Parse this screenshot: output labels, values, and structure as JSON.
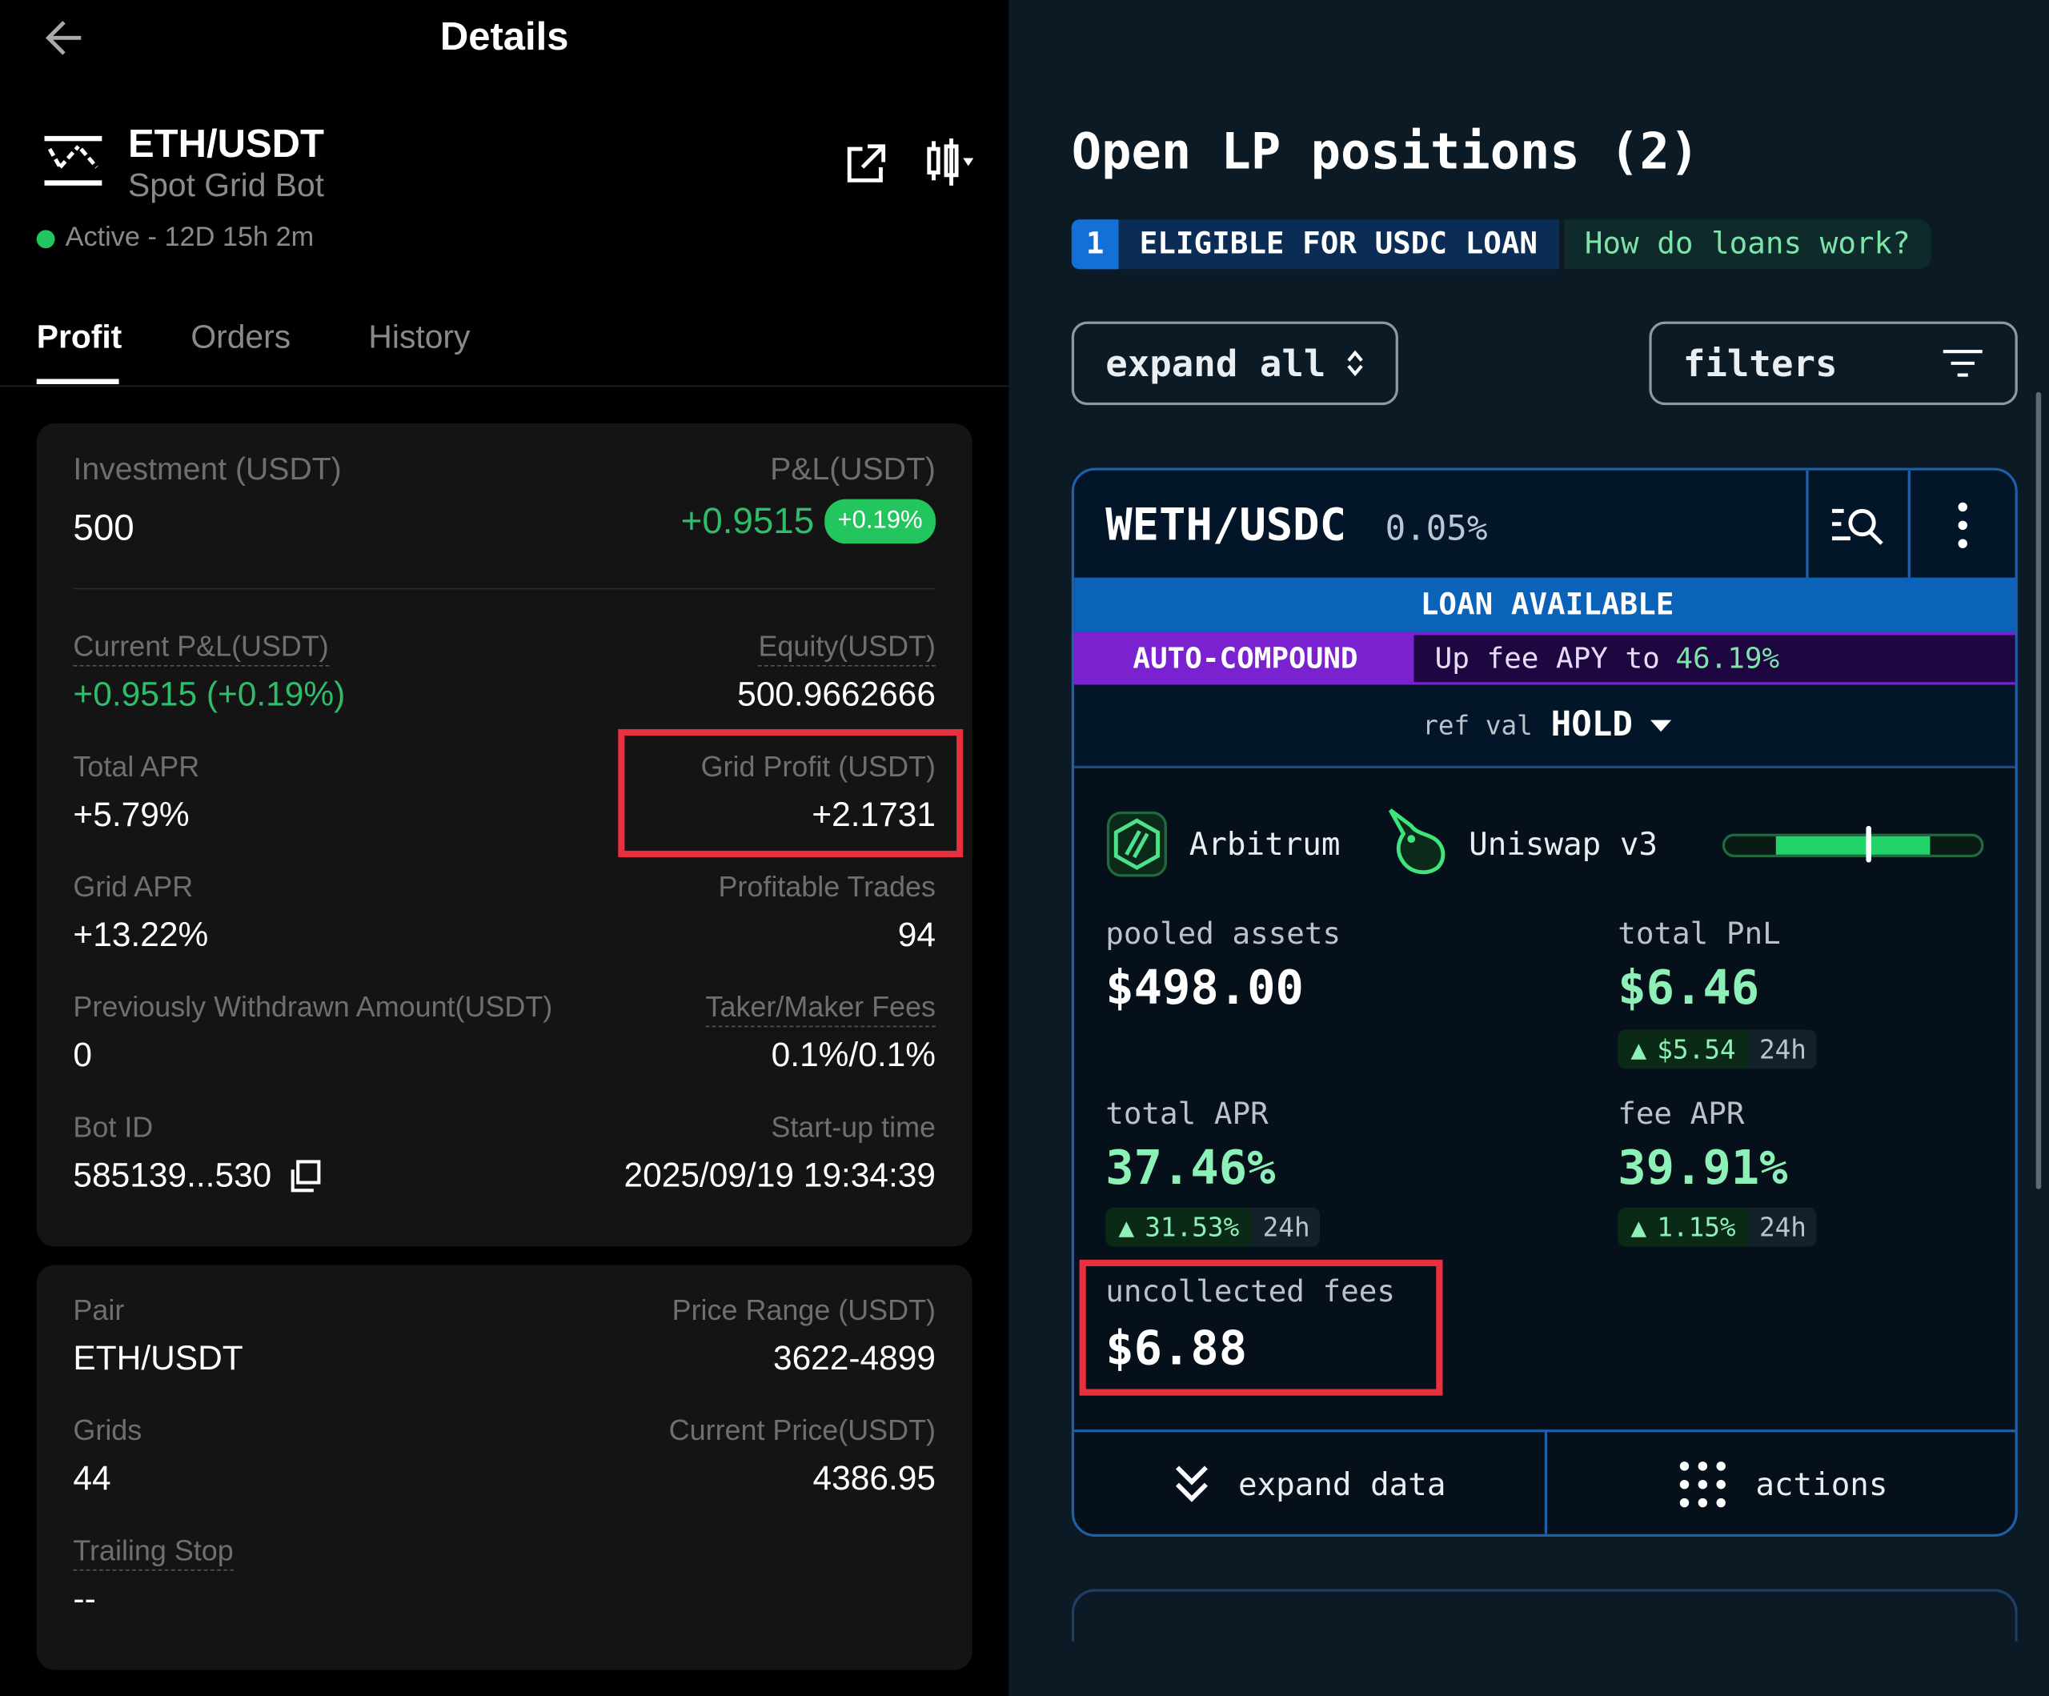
{
  "left": {
    "header": {
      "title": "Details",
      "back_icon": "arrow-left-icon"
    },
    "bot": {
      "pair": "ETH/USDT",
      "type": "Spot Grid Bot",
      "status": "Active - 12D 15h 2m",
      "status_color": "#22c55e",
      "share_icon": "external-link-icon",
      "chart_icon": "candlestick-icon"
    },
    "tabs": [
      {
        "label": "Profit",
        "active": true
      },
      {
        "label": "Orders"
      },
      {
        "label": "History"
      }
    ],
    "summary": {
      "investment_label": "Investment (USDT)",
      "investment": "500",
      "pnl_label": "P&L(USDT)",
      "pnl": "+0.9515",
      "pnl_badge": "+0.19%",
      "current_pnl_label": "Current P&L(USDT)",
      "current_pnl": "+0.9515 (+0.19%)",
      "equity_label": "Equity(USDT)",
      "equity": "500.9662666",
      "total_apr_label": "Total APR",
      "total_apr": "+5.79%",
      "grid_profit_label": "Grid Profit (USDT)",
      "grid_profit": "+2.1731",
      "grid_apr_label": "Grid APR",
      "grid_apr": "+13.22%",
      "profitable_trades_label": "Profitable Trades",
      "profitable_trades": "94",
      "withdrawn_label": "Previously Withdrawn Amount(USDT)",
      "withdrawn": "0",
      "fees_label": "Taker/Maker Fees",
      "fees": "0.1%/0.1%",
      "bot_id_label": "Bot ID",
      "bot_id": "585139...530",
      "startup_label": "Start-up time",
      "startup": "2025/09/19 19:34:39"
    },
    "params": {
      "pair_label": "Pair",
      "pair": "ETH/USDT",
      "range_label": "Price Range (USDT)",
      "range": "3622-4899",
      "grids_label": "Grids",
      "grids": "44",
      "price_label": "Current Price(USDT)",
      "price": "4386.95",
      "trailing_label": "Trailing Stop",
      "trailing": "--"
    }
  },
  "right": {
    "title": "Open LP positions (2)",
    "loan_banner": {
      "count": "1",
      "label": "ELIGIBLE FOR USDC LOAN",
      "link": "How do loans work?"
    },
    "expand_all": "expand all",
    "filters": "filters",
    "position": {
      "pair": "WETH/USDC",
      "fee_tier": "0.05%",
      "loan": "LOAN AVAILABLE",
      "auto_compound": "AUTO-COMPOUND",
      "apy_text": "Up fee APY to",
      "apy_value": "46.19%",
      "ref_val_label": "ref val",
      "ref_val": "HOLD",
      "chain": "Arbitrum",
      "dex": "Uniswap v3",
      "range_fill": {
        "low": 0.2,
        "high": 0.8,
        "current": 0.56
      },
      "pooled_label": "pooled assets",
      "pooled": "$498.00",
      "pnl_label": "total PnL",
      "pnl": "$6.46",
      "pnl_24h": "$5.54",
      "period": "24h",
      "total_apr_label": "total APR",
      "total_apr": "37.46%",
      "total_apr_24h": "31.53%",
      "fee_apr_label": "fee APR",
      "fee_apr": "39.91%",
      "fee_apr_24h": "1.15%",
      "fees_label": "uncollected fees",
      "fees": "$6.88",
      "expand_data": "expand data",
      "actions": "actions"
    },
    "colors": {
      "accent_green": "#8df0b6",
      "loan_blue": "#0a63b8",
      "purple": "#7b22d0",
      "highlight_red": "#e8313f"
    }
  }
}
